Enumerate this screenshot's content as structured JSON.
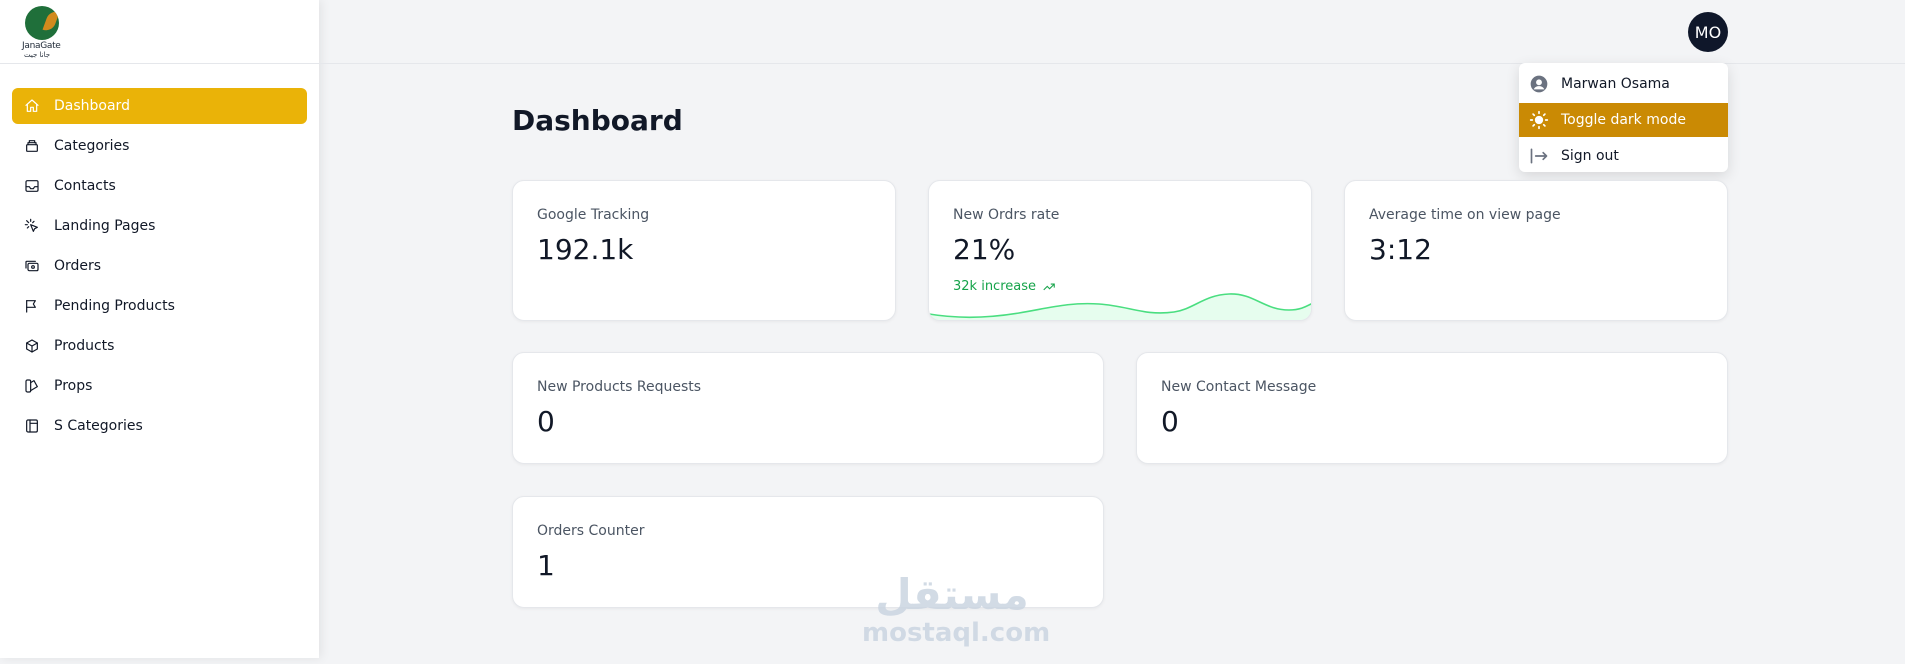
{
  "brand": {
    "name": "JanaGate",
    "subtitle": "جانا جيت"
  },
  "sidebar": {
    "items": [
      {
        "label": "Dashboard",
        "icon": "home-icon",
        "active": true
      },
      {
        "label": "Categories",
        "icon": "archive-icon"
      },
      {
        "label": "Contacts",
        "icon": "inbox-icon"
      },
      {
        "label": "Landing Pages",
        "icon": "cursor-click-icon"
      },
      {
        "label": "Orders",
        "icon": "cash-icon"
      },
      {
        "label": "Pending Products",
        "icon": "flag-icon"
      },
      {
        "label": "Products",
        "icon": "cube-icon"
      },
      {
        "label": "Props",
        "icon": "color-swatch-icon"
      },
      {
        "label": "S Categories",
        "icon": "book-icon"
      }
    ]
  },
  "header": {
    "avatar_initials": "MO"
  },
  "user_menu": {
    "items": [
      {
        "label": "Marwan Osama",
        "icon": "user-circle-icon"
      },
      {
        "label": "Toggle dark mode",
        "icon": "sun-icon",
        "active": true
      },
      {
        "label": "Sign out",
        "icon": "sign-out-icon"
      }
    ]
  },
  "main": {
    "title": "Dashboard",
    "stats": [
      {
        "label": "Google Tracking",
        "value": "192.1k"
      },
      {
        "label": "New Ordrs rate",
        "value": "21%",
        "trend": "32k increase"
      },
      {
        "label": "Average time on view page",
        "value": "3:12"
      },
      {
        "label": "New Products Requests",
        "value": "0"
      },
      {
        "label": "New Contact Message",
        "value": "0"
      },
      {
        "label": "Orders Counter",
        "value": "1"
      }
    ]
  },
  "watermark": {
    "arabic": "مستقل",
    "latin": "mostaql.com"
  },
  "colors": {
    "accent": "#eab308",
    "menu_active": "#ca8a04",
    "trend": "#16a34a",
    "avatar_bg": "#0f172a"
  }
}
